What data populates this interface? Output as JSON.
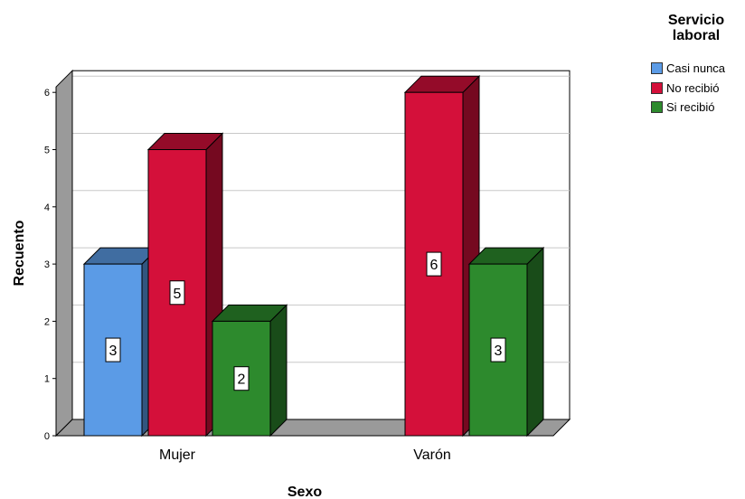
{
  "chart_data": {
    "type": "bar",
    "xlabel": "Sexo",
    "ylabel": "Recuento",
    "ylim": [
      0,
      6
    ],
    "yticks": [
      0,
      1,
      2,
      3,
      4,
      5,
      6
    ],
    "categories": [
      "Mujer",
      "Varón"
    ],
    "legend_title": "Servicio laboral",
    "legend_title_lines": [
      "Servicio",
      "laboral"
    ],
    "series": [
      {
        "name": "Casi nunca",
        "color": "#5b9be6",
        "values": [
          3,
          null
        ]
      },
      {
        "name": "No recibió",
        "color": "#d4103a",
        "values": [
          5,
          6
        ]
      },
      {
        "name": "Si recibió",
        "color": "#2d8a2d",
        "values": [
          2,
          3
        ]
      }
    ],
    "grid": true,
    "legend_position": "top-right",
    "style": "3d-bars"
  }
}
